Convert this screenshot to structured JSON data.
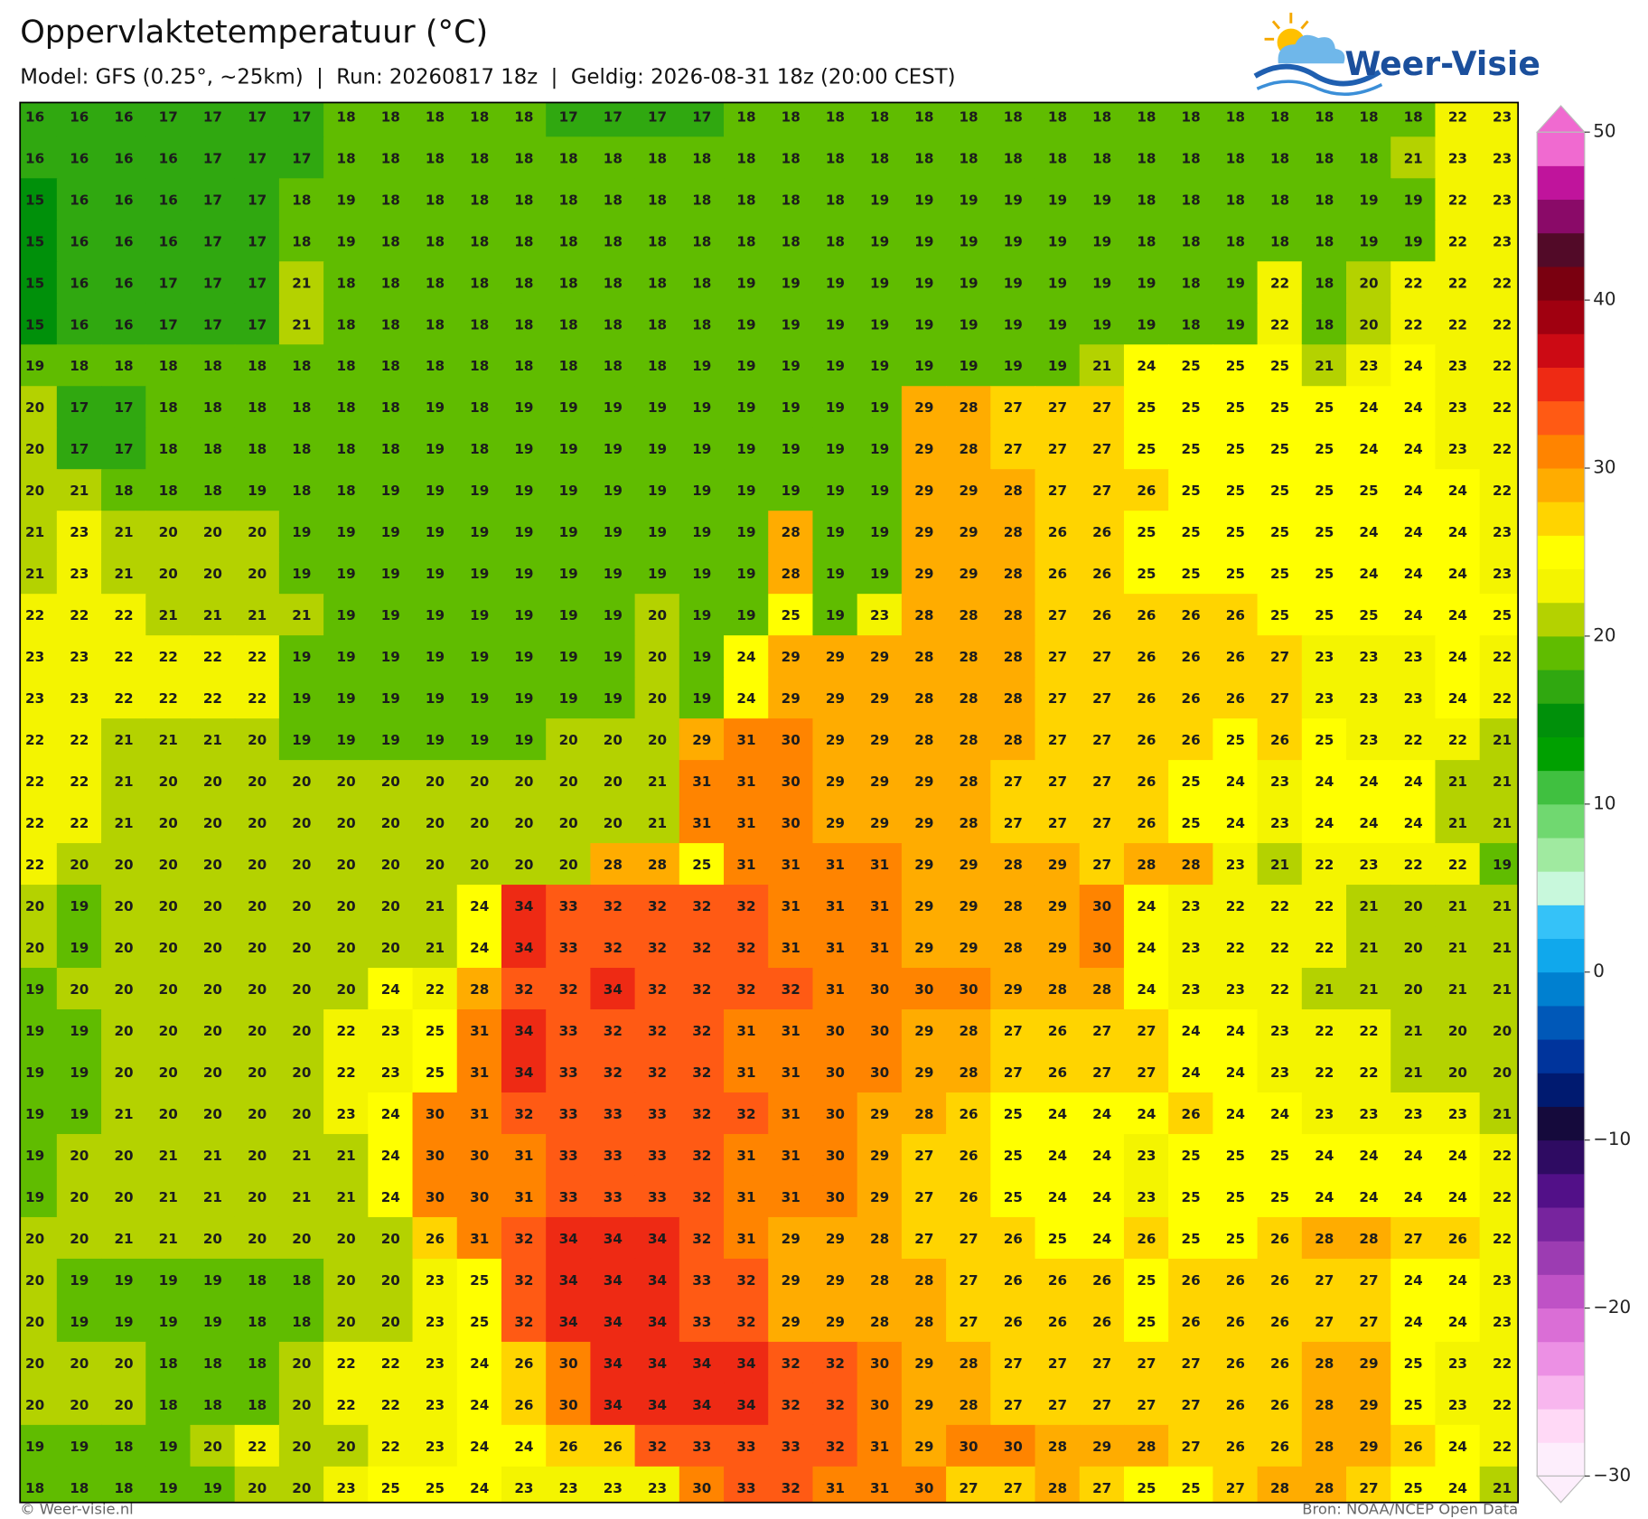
{
  "header": {
    "title": "Oppervlaktetemperatuur (°C)",
    "subtitle": "Model: GFS (0.25°, ~25km)  |  Run: 20260817 18z  |  Geldig: 2026-08-31 18z (20:00 CEST)",
    "logo": "Weer-Visie"
  },
  "map": {
    "grid": [
      [
        16,
        16,
        16,
        17,
        17,
        17,
        17,
        18,
        18,
        18,
        18,
        18,
        17,
        17,
        17,
        17,
        18,
        18,
        18,
        18,
        18,
        18,
        18,
        18,
        18,
        18,
        18,
        18,
        18,
        18,
        18,
        18,
        22,
        23
      ],
      [
        16,
        16,
        16,
        16,
        17,
        17,
        17,
        18,
        18,
        18,
        18,
        18,
        18,
        18,
        18,
        18,
        18,
        18,
        18,
        18,
        18,
        18,
        18,
        18,
        18,
        18,
        18,
        18,
        18,
        18,
        18,
        21,
        23,
        23
      ],
      [
        15,
        16,
        16,
        16,
        17,
        17,
        18,
        19,
        18,
        18,
        18,
        18,
        18,
        18,
        18,
        18,
        18,
        18,
        18,
        19,
        19,
        19,
        19,
        19,
        19,
        18,
        18,
        18,
        18,
        18,
        19,
        19,
        22,
        23
      ],
      [
        15,
        16,
        16,
        16,
        17,
        17,
        18,
        19,
        18,
        18,
        18,
        18,
        18,
        18,
        18,
        18,
        18,
        18,
        18,
        19,
        19,
        19,
        19,
        19,
        19,
        18,
        18,
        18,
        18,
        18,
        19,
        19,
        22,
        23
      ],
      [
        15,
        16,
        16,
        17,
        17,
        17,
        21,
        18,
        18,
        18,
        18,
        18,
        18,
        18,
        18,
        18,
        19,
        19,
        19,
        19,
        19,
        19,
        19,
        19,
        19,
        19,
        18,
        19,
        22,
        18,
        20,
        22,
        22,
        22
      ],
      [
        15,
        16,
        16,
        17,
        17,
        17,
        21,
        18,
        18,
        18,
        18,
        18,
        18,
        18,
        18,
        18,
        19,
        19,
        19,
        19,
        19,
        19,
        19,
        19,
        19,
        19,
        18,
        19,
        22,
        18,
        20,
        22,
        22,
        22
      ],
      [
        19,
        18,
        18,
        18,
        18,
        18,
        18,
        18,
        18,
        18,
        18,
        18,
        18,
        18,
        18,
        19,
        19,
        19,
        19,
        19,
        19,
        19,
        19,
        19,
        21,
        24,
        25,
        25,
        25,
        21,
        23,
        24,
        23,
        22
      ],
      [
        20,
        17,
        17,
        18,
        18,
        18,
        18,
        18,
        18,
        19,
        18,
        19,
        19,
        19,
        19,
        19,
        19,
        19,
        19,
        19,
        29,
        28,
        27,
        27,
        27,
        25,
        25,
        25,
        25,
        25,
        24,
        24,
        23,
        22
      ],
      [
        20,
        17,
        17,
        18,
        18,
        18,
        18,
        18,
        18,
        19,
        18,
        19,
        19,
        19,
        19,
        19,
        19,
        19,
        19,
        19,
        29,
        28,
        27,
        27,
        27,
        25,
        25,
        25,
        25,
        25,
        24,
        24,
        23,
        22
      ],
      [
        20,
        21,
        18,
        18,
        18,
        19,
        18,
        18,
        19,
        19,
        19,
        19,
        19,
        19,
        19,
        19,
        19,
        19,
        19,
        19,
        29,
        29,
        28,
        27,
        27,
        26,
        25,
        25,
        25,
        25,
        25,
        24,
        24,
        22
      ],
      [
        21,
        23,
        21,
        20,
        20,
        20,
        19,
        19,
        19,
        19,
        19,
        19,
        19,
        19,
        19,
        19,
        19,
        28,
        19,
        19,
        29,
        29,
        28,
        26,
        26,
        25,
        25,
        25,
        25,
        25,
        24,
        24,
        24,
        23
      ],
      [
        21,
        23,
        21,
        20,
        20,
        20,
        19,
        19,
        19,
        19,
        19,
        19,
        19,
        19,
        19,
        19,
        19,
        28,
        19,
        19,
        29,
        29,
        28,
        26,
        26,
        25,
        25,
        25,
        25,
        25,
        24,
        24,
        24,
        23
      ],
      [
        22,
        22,
        22,
        21,
        21,
        21,
        21,
        19,
        19,
        19,
        19,
        19,
        19,
        19,
        20,
        19,
        19,
        25,
        19,
        23,
        28,
        28,
        28,
        27,
        26,
        26,
        26,
        26,
        25,
        25,
        25,
        24,
        24,
        25
      ],
      [
        23,
        23,
        22,
        22,
        22,
        22,
        19,
        19,
        19,
        19,
        19,
        19,
        19,
        19,
        20,
        19,
        24,
        29,
        29,
        29,
        28,
        28,
        28,
        27,
        27,
        26,
        26,
        26,
        27,
        23,
        23,
        23,
        24,
        22
      ],
      [
        23,
        23,
        22,
        22,
        22,
        22,
        19,
        19,
        19,
        19,
        19,
        19,
        19,
        19,
        20,
        19,
        24,
        29,
        29,
        29,
        28,
        28,
        28,
        27,
        27,
        26,
        26,
        26,
        27,
        23,
        23,
        23,
        24,
        22
      ],
      [
        22,
        22,
        21,
        21,
        21,
        20,
        19,
        19,
        19,
        19,
        19,
        19,
        20,
        20,
        20,
        29,
        31,
        30,
        29,
        29,
        28,
        28,
        28,
        27,
        27,
        26,
        26,
        25,
        26,
        25,
        23,
        22,
        22,
        21
      ],
      [
        22,
        22,
        21,
        20,
        20,
        20,
        20,
        20,
        20,
        20,
        20,
        20,
        20,
        20,
        21,
        31,
        31,
        30,
        29,
        29,
        29,
        28,
        27,
        27,
        27,
        26,
        25,
        24,
        23,
        24,
        24,
        24,
        21,
        21
      ],
      [
        22,
        22,
        21,
        20,
        20,
        20,
        20,
        20,
        20,
        20,
        20,
        20,
        20,
        20,
        21,
        31,
        31,
        30,
        29,
        29,
        29,
        28,
        27,
        27,
        27,
        26,
        25,
        24,
        23,
        24,
        24,
        24,
        21,
        21
      ],
      [
        22,
        20,
        20,
        20,
        20,
        20,
        20,
        20,
        20,
        20,
        20,
        20,
        20,
        28,
        28,
        25,
        31,
        31,
        31,
        31,
        29,
        29,
        28,
        29,
        27,
        28,
        28,
        23,
        21,
        22,
        23,
        22,
        22,
        19
      ],
      [
        20,
        19,
        20,
        20,
        20,
        20,
        20,
        20,
        20,
        21,
        24,
        34,
        33,
        32,
        32,
        32,
        32,
        31,
        31,
        31,
        29,
        29,
        28,
        29,
        30,
        24,
        23,
        22,
        22,
        22,
        21,
        20,
        21,
        21
      ],
      [
        20,
        19,
        20,
        20,
        20,
        20,
        20,
        20,
        20,
        21,
        24,
        34,
        33,
        32,
        32,
        32,
        32,
        31,
        31,
        31,
        29,
        29,
        28,
        29,
        30,
        24,
        23,
        22,
        22,
        22,
        21,
        20,
        21,
        21
      ],
      [
        19,
        20,
        20,
        20,
        20,
        20,
        20,
        20,
        24,
        22,
        28,
        32,
        32,
        34,
        32,
        32,
        32,
        32,
        31,
        30,
        30,
        30,
        29,
        28,
        28,
        24,
        23,
        23,
        22,
        21,
        21,
        20,
        21,
        21
      ],
      [
        19,
        19,
        20,
        20,
        20,
        20,
        20,
        22,
        23,
        25,
        31,
        34,
        33,
        32,
        32,
        32,
        31,
        31,
        30,
        30,
        29,
        28,
        27,
        26,
        27,
        27,
        24,
        24,
        23,
        22,
        22,
        21,
        20,
        20
      ],
      [
        19,
        19,
        20,
        20,
        20,
        20,
        20,
        22,
        23,
        25,
        31,
        34,
        33,
        32,
        32,
        32,
        31,
        31,
        30,
        30,
        29,
        28,
        27,
        26,
        27,
        27,
        24,
        24,
        23,
        22,
        22,
        21,
        20,
        20
      ],
      [
        19,
        19,
        21,
        20,
        20,
        20,
        20,
        23,
        24,
        30,
        31,
        32,
        33,
        33,
        33,
        32,
        32,
        31,
        30,
        29,
        28,
        26,
        25,
        24,
        24,
        24,
        26,
        24,
        24,
        23,
        23,
        23,
        23,
        21
      ],
      [
        19,
        20,
        20,
        21,
        21,
        20,
        21,
        21,
        24,
        30,
        30,
        31,
        33,
        33,
        33,
        32,
        31,
        31,
        30,
        29,
        27,
        26,
        25,
        24,
        24,
        23,
        25,
        25,
        25,
        24,
        24,
        24,
        24,
        22
      ],
      [
        19,
        20,
        20,
        21,
        21,
        20,
        21,
        21,
        24,
        30,
        30,
        31,
        33,
        33,
        33,
        32,
        31,
        31,
        30,
        29,
        27,
        26,
        25,
        24,
        24,
        23,
        25,
        25,
        25,
        24,
        24,
        24,
        24,
        22
      ],
      [
        20,
        20,
        21,
        21,
        20,
        20,
        20,
        20,
        20,
        26,
        31,
        32,
        34,
        34,
        34,
        32,
        31,
        29,
        29,
        28,
        27,
        27,
        26,
        25,
        24,
        26,
        25,
        25,
        26,
        28,
        28,
        27,
        26,
        22
      ],
      [
        20,
        19,
        19,
        19,
        19,
        18,
        18,
        20,
        20,
        23,
        25,
        32,
        34,
        34,
        34,
        33,
        32,
        29,
        29,
        28,
        28,
        27,
        26,
        26,
        26,
        25,
        26,
        26,
        26,
        27,
        27,
        24,
        24,
        23
      ],
      [
        20,
        19,
        19,
        19,
        19,
        18,
        18,
        20,
        20,
        23,
        25,
        32,
        34,
        34,
        34,
        33,
        32,
        29,
        29,
        28,
        28,
        27,
        26,
        26,
        26,
        25,
        26,
        26,
        26,
        27,
        27,
        24,
        24,
        23
      ],
      [
        20,
        20,
        20,
        18,
        18,
        18,
        20,
        22,
        22,
        23,
        24,
        26,
        30,
        34,
        34,
        34,
        34,
        32,
        32,
        30,
        29,
        28,
        27,
        27,
        27,
        27,
        27,
        26,
        26,
        28,
        29,
        25,
        23,
        22
      ],
      [
        20,
        20,
        20,
        18,
        18,
        18,
        20,
        22,
        22,
        23,
        24,
        26,
        30,
        34,
        34,
        34,
        34,
        32,
        32,
        30,
        29,
        28,
        27,
        27,
        27,
        27,
        27,
        26,
        26,
        28,
        29,
        25,
        23,
        22
      ],
      [
        19,
        19,
        18,
        19,
        20,
        22,
        20,
        20,
        22,
        23,
        24,
        24,
        26,
        26,
        32,
        33,
        33,
        33,
        32,
        31,
        29,
        30,
        30,
        28,
        29,
        28,
        27,
        26,
        26,
        28,
        29,
        26,
        24,
        22
      ],
      [
        18,
        18,
        18,
        19,
        19,
        20,
        20,
        23,
        25,
        25,
        24,
        23,
        23,
        23,
        23,
        30,
        33,
        32,
        31,
        31,
        30,
        27,
        27,
        28,
        27,
        25,
        25,
        27,
        28,
        28,
        27,
        25,
        24,
        21
      ]
    ],
    "colorbar": {
      "lim": [
        -30,
        50
      ],
      "ticks": [
        {
          "value": -30,
          "label": "−30"
        },
        {
          "value": -20,
          "label": "−20"
        },
        {
          "value": -10,
          "label": "−10"
        },
        0,
        10,
        20,
        30,
        40,
        50
      ],
      "colors": [
        "#fdeefc",
        "#ffd9f6",
        "#f8b6ee",
        "#ec90e4",
        "#da6ed6",
        "#bf52c6",
        "#9c3cb2",
        "#77249e",
        "#521088",
        "#2e0b62",
        "#150a3c",
        "#001a70",
        "#00349c",
        "#0058b8",
        "#0080d0",
        "#10a8ec",
        "#35c2f8",
        "#c8f8dc",
        "#a0eaa0",
        "#70d870",
        "#40c040",
        "#00a000",
        "#00900a",
        "#30a810",
        "#60bc00",
        "#b4d200",
        "#f4f400",
        "#ffff00",
        "#ffd400",
        "#ffac00",
        "#ff8400",
        "#ff5a14",
        "#ee2a14",
        "#cc0a14",
        "#a00010",
        "#7a0010",
        "#520a28",
        "#8a0a68",
        "#c0149c",
        "#f06ad0"
      ]
    }
  },
  "footer": {
    "left": "© Weer-visie.nl",
    "right": "Bron: NOAA/NCEP Open Data"
  }
}
